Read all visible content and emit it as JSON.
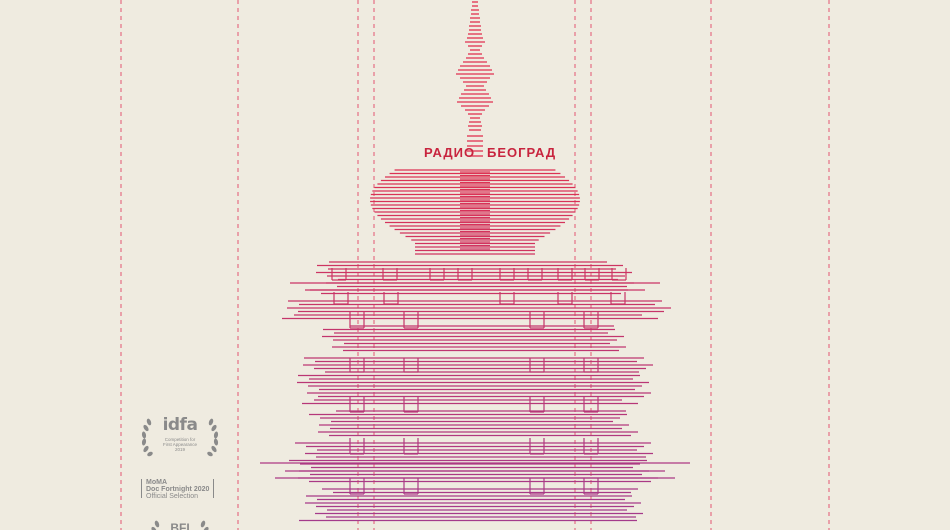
{
  "sign": {
    "left_word": "РАДИО",
    "right_word": "БЕОГРАД"
  },
  "colors": {
    "background": "#efebe0",
    "accent_red": "#e0314f",
    "accent_magenta": "#a23a8d",
    "guide_line": "#e35572",
    "laurel_gray": "#8a8a8a"
  },
  "festivals": {
    "idfa": {
      "logo": "idfa",
      "line1": "Competition for",
      "line2": "First Appearance",
      "year": "2019"
    },
    "moma": {
      "line1": "MoMA",
      "line2": "Doc Fortnight 2020",
      "line3": "Official Selection"
    },
    "bfi": {
      "logo": "BFI"
    }
  },
  "icons": {
    "laurel": "laurel-wreath-icon"
  }
}
